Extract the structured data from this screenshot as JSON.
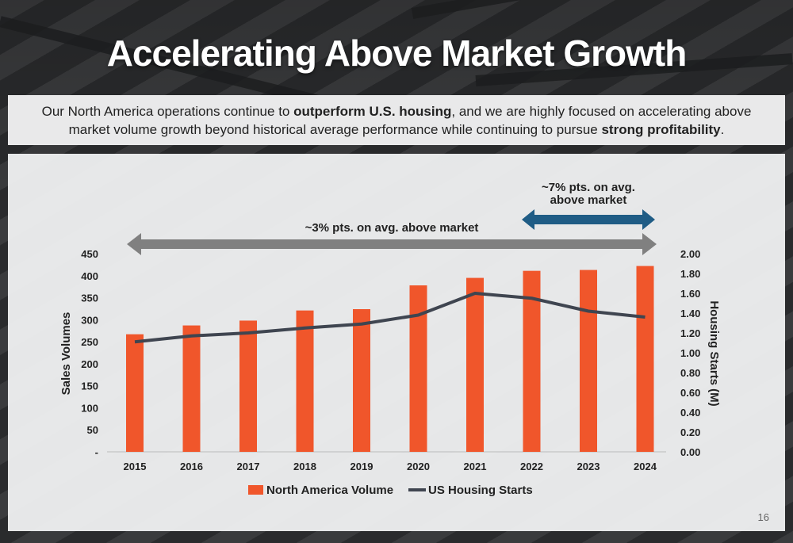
{
  "slide": {
    "title": "Accelerating Above Market Growth",
    "subtitle_parts": [
      {
        "text": "Our North America operations continue to ",
        "bold": false
      },
      {
        "text": "outperform U.S. housing",
        "bold": true
      },
      {
        "text": ", and we are highly focused on accelerating above market volume growth beyond historical average performance while continuing to pursue ",
        "bold": false
      },
      {
        "text": "strong profitability",
        "bold": true
      },
      {
        "text": ".",
        "bold": false
      }
    ],
    "page_number": "16"
  },
  "annotations": {
    "long_arrow_label": "~3% pts. on avg. above market",
    "short_arrow_label_line1": "~7% pts. on avg.",
    "short_arrow_label_line2": "above market",
    "long_arrow_color": "#808080",
    "short_arrow_color": "#1f5c85"
  },
  "chart_data": {
    "type": "bar",
    "categories": [
      "2015",
      "2016",
      "2017",
      "2018",
      "2019",
      "2020",
      "2021",
      "2022",
      "2023",
      "2024"
    ],
    "series": [
      {
        "name": "North America Volume",
        "type": "bar",
        "axis": "left",
        "color": "#f0562b",
        "values": [
          267,
          287,
          298,
          321,
          324,
          378,
          395,
          411,
          413,
          422
        ]
      },
      {
        "name": "US Housing Starts",
        "type": "line",
        "axis": "right",
        "color": "#3f4550",
        "values": [
          1.11,
          1.17,
          1.2,
          1.25,
          1.29,
          1.38,
          1.6,
          1.55,
          1.42,
          1.36
        ]
      }
    ],
    "ylabel": "Sales Volumes",
    "y2label": "Housing Starts (M)",
    "ylim": [
      0,
      450
    ],
    "y2lim": [
      0,
      2.0
    ],
    "yticks": [
      "-",
      "50",
      "100",
      "150",
      "200",
      "250",
      "300",
      "350",
      "400",
      "450"
    ],
    "y2ticks": [
      "0.00",
      "0.20",
      "0.40",
      "0.60",
      "0.80",
      "1.00",
      "1.20",
      "1.40",
      "1.60",
      "1.80",
      "2.00"
    ],
    "grid": false,
    "legend_position": "bottom"
  }
}
